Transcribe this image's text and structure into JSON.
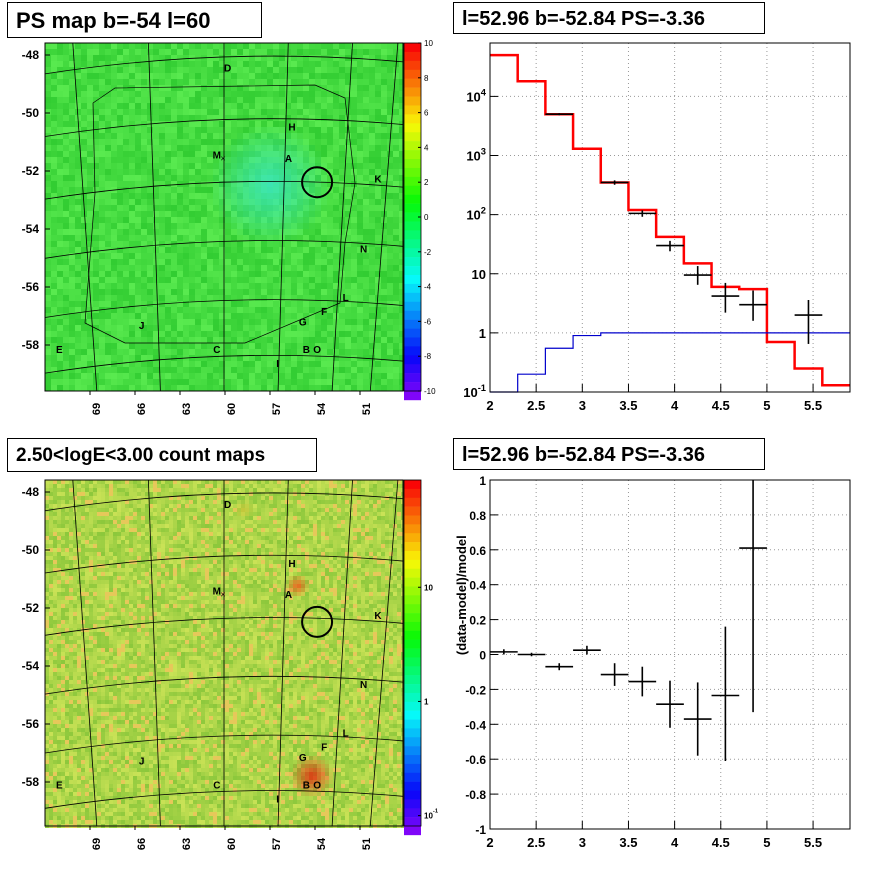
{
  "titles": {
    "ps_map": "PS map b=-54 l=60",
    "spectrum": "l=52.96 b=-52.84 PS=-3.36",
    "count_map": "2.50<logE<3.00 count maps",
    "residual": "l=52.96 b=-52.84 PS=-3.36"
  },
  "chart_data": [
    {
      "type": "heatmap",
      "panel": "ps_map",
      "title": "PS map b=-54 l=60",
      "x_ticks": [
        "69",
        "66",
        "63",
        "60",
        "57",
        "54",
        "51"
      ],
      "y_ticks": [
        "-48",
        "-50",
        "-52",
        "-54",
        "-56",
        "-58"
      ],
      "colorbar_ticks": [
        "10",
        "8",
        "6",
        "4",
        "2",
        "0",
        "-2",
        "-4",
        "-6",
        "-8",
        "-10"
      ],
      "colorbar_range": [
        -10,
        10
      ],
      "source_labels": [
        "D",
        "H",
        "M",
        "A",
        "K",
        "N",
        "L",
        "F",
        "G",
        "J",
        "E",
        "C",
        "I",
        "B",
        "O"
      ],
      "colors": {
        "background_field": "#3ad83a",
        "hotspot": "#2ce6b4",
        "frame": "#000000"
      }
    },
    {
      "type": "line",
      "panel": "spectrum",
      "title": "l=52.96 b=-52.84 PS=-3.36",
      "y_scale": "log",
      "xlim": [
        2,
        5.9
      ],
      "ylim": [
        0.1,
        80000
      ],
      "x_ticks": [
        "2",
        "2.5",
        "3",
        "3.5",
        "4",
        "4.5",
        "5",
        "5.5"
      ],
      "y_ticks": [
        "10^-1",
        "1",
        "10",
        "10^2",
        "10^3",
        "10^4"
      ],
      "grid": true,
      "series": [
        {
          "color": "#ff0000",
          "style": "step",
          "edges": [
            2.0,
            2.3,
            2.6,
            2.9,
            3.2,
            3.5,
            3.8,
            4.1,
            4.4,
            4.7,
            5.0,
            5.3,
            5.6,
            5.9
          ],
          "values": [
            50000,
            18000,
            5000,
            1300,
            350,
            120,
            42,
            15,
            6,
            5.5,
            0.7,
            0.25,
            0.13
          ]
        },
        {
          "color": "#0000cc",
          "style": "step",
          "edges": [
            2.0,
            2.3,
            2.6,
            2.9,
            3.2,
            3.5,
            3.8,
            4.1,
            4.4,
            4.7,
            5.0,
            5.3,
            5.6,
            5.9
          ],
          "values": [
            0.05,
            0.2,
            0.55,
            0.9,
            1.0,
            1.0,
            1.0,
            1.0,
            1.0,
            1.0,
            1.0,
            1.0,
            1.0
          ]
        },
        {
          "color": "#000000",
          "style": "errorbar",
          "x": [
            2.75,
            3.35,
            3.65,
            3.95,
            4.25,
            4.55,
            4.85,
            5.45
          ],
          "xerr": [
            0.15,
            0.15,
            0.15,
            0.15,
            0.15,
            0.15,
            0.15,
            0.15
          ],
          "y": [
            5000,
            350,
            105,
            30,
            9.5,
            4.2,
            3.0,
            2.0
          ],
          "ylo": [
            4800,
            320,
            92,
            24,
            6.5,
            2.2,
            1.6,
            0.65
          ],
          "yhi": [
            5200,
            380,
            118,
            36,
            13.5,
            7,
            5.2,
            3.6
          ]
        }
      ]
    },
    {
      "type": "heatmap",
      "panel": "count_map",
      "title": "2.50<logE<3.00 count maps",
      "x_ticks": [
        "69",
        "66",
        "63",
        "60",
        "57",
        "54",
        "51"
      ],
      "y_ticks": [
        "-48",
        "-50",
        "-52",
        "-54",
        "-56",
        "-58"
      ],
      "colorbar_ticks": [
        "10",
        "1",
        "10^-1"
      ],
      "colorbar_scale": "log",
      "source_labels": [
        "D",
        "H",
        "M",
        "A",
        "K",
        "N",
        "L",
        "F",
        "G",
        "J",
        "E",
        "C",
        "I",
        "B",
        "O"
      ],
      "colors": {
        "background_field": "#9ed64a",
        "hotspot": "#e8491a",
        "frame": "#000000"
      }
    },
    {
      "type": "scatter",
      "panel": "residual",
      "title": "l=52.96 b=-52.84 PS=-3.36",
      "ylabel": "(data-model)/model",
      "xlim": [
        2,
        5.9
      ],
      "ylim": [
        -1,
        1
      ],
      "x_ticks": [
        "2",
        "2.5",
        "3",
        "3.5",
        "4",
        "4.5",
        "5",
        "5.5"
      ],
      "y_ticks": [
        "1",
        "0.8",
        "0.6",
        "0.4",
        "0.2",
        "0",
        "-0.2",
        "-0.4",
        "-0.6",
        "-0.8",
        "-1"
      ],
      "grid": true,
      "series": [
        {
          "color": "#000000",
          "style": "errorbar",
          "x": [
            2.15,
            2.45,
            2.75,
            3.05,
            3.35,
            3.65,
            3.95,
            4.25,
            4.55,
            4.85
          ],
          "xerr": [
            0.15,
            0.15,
            0.15,
            0.15,
            0.15,
            0.15,
            0.15,
            0.15,
            0.15,
            0.15
          ],
          "y": [
            0.015,
            0.0,
            -0.07,
            0.025,
            -0.115,
            -0.155,
            -0.285,
            -0.37,
            -0.235,
            0.61
          ],
          "ylo": [
            0.0,
            -0.01,
            -0.09,
            0.0,
            -0.18,
            -0.24,
            -0.42,
            -0.58,
            -0.61,
            -0.33
          ],
          "yhi": [
            0.03,
            0.01,
            -0.05,
            0.05,
            -0.05,
            -0.07,
            -0.15,
            -0.16,
            0.16,
            1.0
          ]
        }
      ]
    }
  ]
}
